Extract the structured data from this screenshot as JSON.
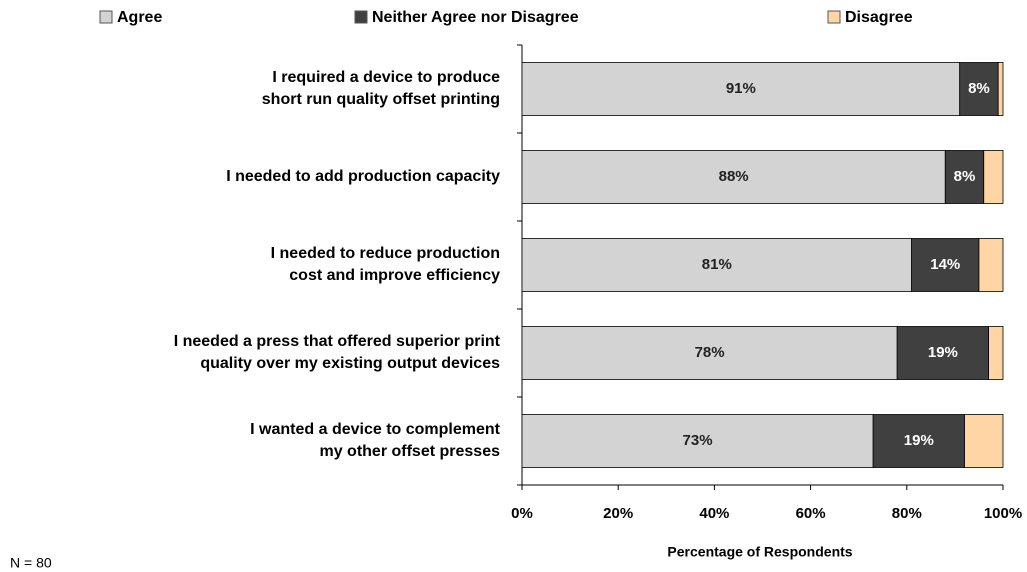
{
  "chart_data": {
    "type": "stacked-barh",
    "categories": [
      "I required a device to produce\nshort run quality offset printing",
      "I needed to add production capacity",
      "I needed to reduce production\ncost and improve efficiency",
      "I needed a press that offered superior print\nquality over my existing output devices",
      "I wanted a device to complement\nmy other offset presses"
    ],
    "series": [
      {
        "name": "Agree",
        "color": "#d3d3d3",
        "label_color": "#222222",
        "values": [
          91,
          88,
          81,
          78,
          73
        ],
        "value_labels": [
          "91%",
          "88%",
          "81%",
          "78%",
          "73%"
        ]
      },
      {
        "name": "Neither Agree nor Disagree",
        "color": "#404040",
        "label_color": "#ffffff",
        "values": [
          8,
          8,
          14,
          19,
          19
        ],
        "value_labels": [
          "8%",
          "8%",
          "14%",
          "19%",
          "19%"
        ]
      },
      {
        "name": "Disagree",
        "color": "#ffd5a6",
        "values": [
          1,
          4,
          5,
          3,
          8
        ]
      }
    ],
    "xlim": [
      0,
      100
    ],
    "xticks": [
      {
        "value": 0,
        "label": "0%"
      },
      {
        "value": 20,
        "label": "20%"
      },
      {
        "value": 40,
        "label": "40%"
      },
      {
        "value": 60,
        "label": "60%"
      },
      {
        "value": 80,
        "label": "80%"
      },
      {
        "value": 100,
        "label": "100%"
      }
    ],
    "xlabel": "Percentage of Respondents",
    "note": "N = 80",
    "legend": "top"
  }
}
